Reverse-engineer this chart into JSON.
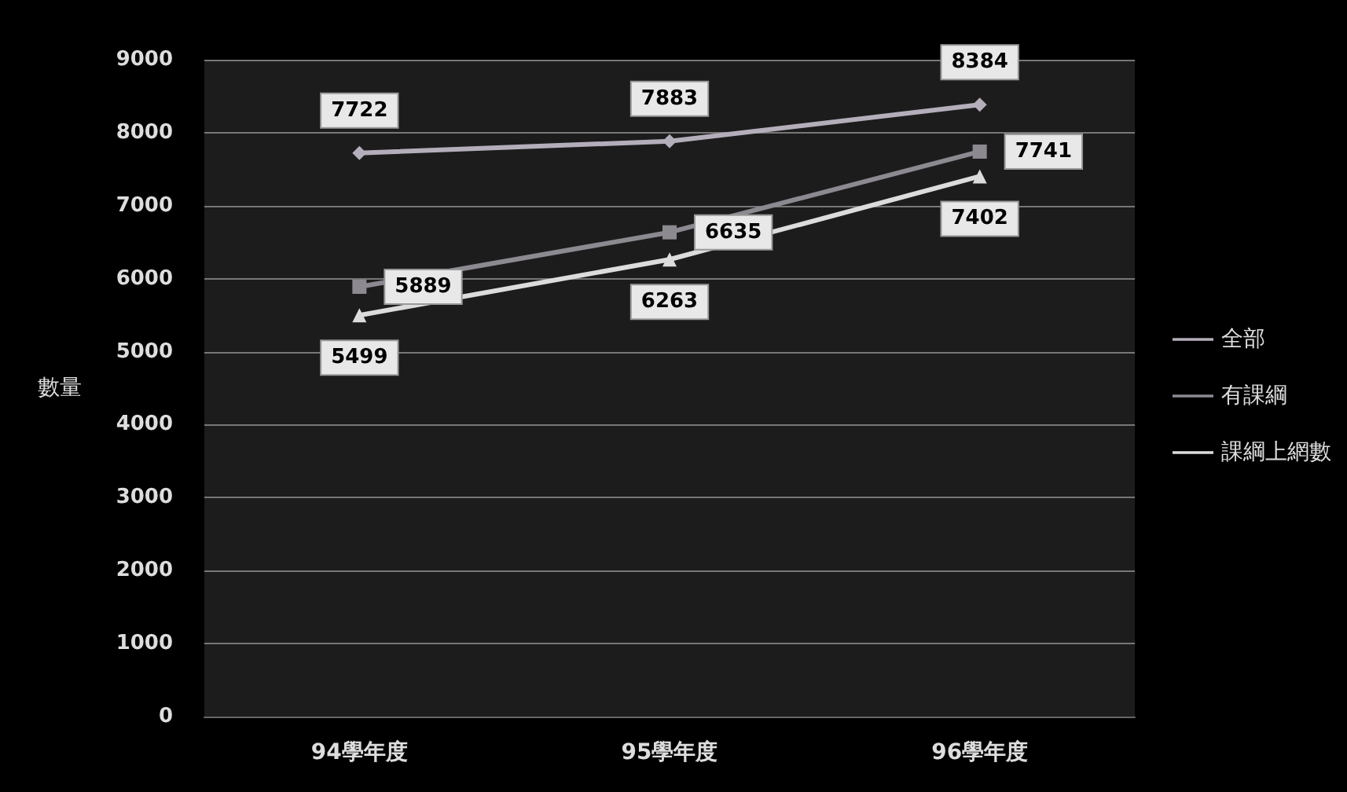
{
  "chart_data": {
    "type": "line",
    "ylabel": "數量",
    "categories": [
      "94學年度",
      "95學年度",
      "96學年度"
    ],
    "series": [
      {
        "name": "全部",
        "color": "#b4aebb",
        "marker": "diamond",
        "values": [
          7722,
          7883,
          8384
        ]
      },
      {
        "name": "有課綱",
        "color": "#8c8a90",
        "marker": "square",
        "values": [
          5889,
          6635,
          7741
        ]
      },
      {
        "name": "課綱上網數",
        "color": "#dcdcdc",
        "marker": "triangle",
        "values": [
          5499,
          6263,
          7402
        ]
      }
    ],
    "ylim": [
      0,
      9000
    ],
    "yticks": [
      0,
      1000,
      2000,
      3000,
      4000,
      5000,
      6000,
      7000,
      8000,
      9000
    ],
    "grid": "y",
    "legend": "right",
    "line_style": "solid",
    "data_labels": true
  }
}
